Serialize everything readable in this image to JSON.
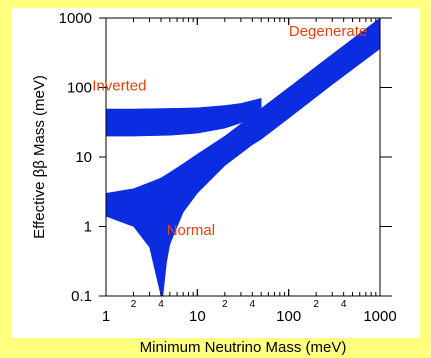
{
  "chart_data": {
    "type": "area",
    "xlabel": "Minimum Neutrino Mass (meV)",
    "ylabel": "Effective ββ Mass (meV)",
    "xscale": "log",
    "yscale": "log",
    "xlim": [
      1,
      1000
    ],
    "ylim": [
      0.1,
      1000
    ],
    "x_ticks": [
      {
        "value": 1,
        "label": "1"
      },
      {
        "value": 10,
        "label": "10"
      },
      {
        "value": 100,
        "label": "100"
      },
      {
        "value": 1000,
        "label": "1000"
      }
    ],
    "x_minor_labels": [
      {
        "value": 2,
        "label": "2"
      },
      {
        "value": 4,
        "label": "4"
      },
      {
        "value": 20,
        "label": "2"
      },
      {
        "value": 40,
        "label": "4"
      },
      {
        "value": 200,
        "label": "2"
      },
      {
        "value": 400,
        "label": "4"
      }
    ],
    "y_ticks": [
      {
        "value": 0.1,
        "label": "0.1"
      },
      {
        "value": 1,
        "label": "1"
      },
      {
        "value": 10,
        "label": "10"
      },
      {
        "value": 100,
        "label": "100"
      },
      {
        "value": 1000,
        "label": "1000"
      }
    ],
    "grid": false,
    "band_color": "#0b2ce0",
    "annotation_color": "#e8400c",
    "annotations": [
      {
        "text": "Degenerate",
        "x": 270,
        "y": 550
      },
      {
        "text": "Inverted",
        "x": 1.4,
        "y": 90
      },
      {
        "text": "Normal",
        "x": 8.5,
        "y": 0.75
      }
    ],
    "series": [
      {
        "name": "Inverted",
        "x": [
          1,
          2,
          5,
          10,
          20,
          30,
          50
        ],
        "upper": [
          49,
          49,
          50,
          51,
          55,
          59,
          70
        ],
        "lower": [
          20,
          20,
          20.5,
          22,
          26,
          31,
          43
        ]
      },
      {
        "name": "Normal",
        "x": [
          1,
          2,
          3,
          4,
          4.2,
          4.6,
          5,
          7,
          10,
          20,
          40,
          50,
          100,
          300,
          1000
        ],
        "upper": [
          3,
          3.5,
          4.3,
          5,
          5.2,
          5.6,
          6,
          8,
          11,
          20,
          40,
          50,
          100,
          300,
          1000
        ],
        "lower": [
          1.4,
          1.0,
          0.5,
          0.1,
          0.1,
          0.3,
          0.55,
          1.6,
          3,
          7.5,
          15,
          18,
          36,
          110,
          360
        ]
      }
    ]
  }
}
